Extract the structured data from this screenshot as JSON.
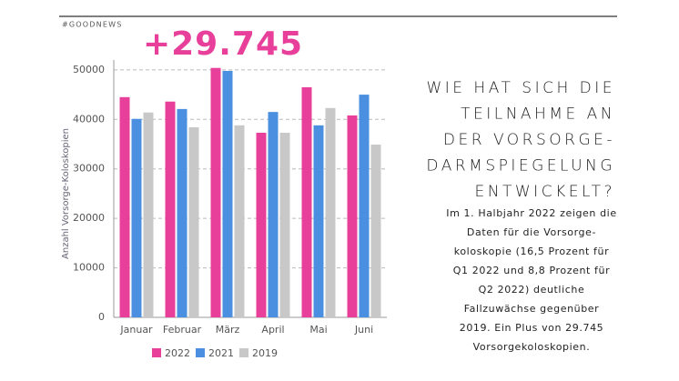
{
  "header": "#GOODNEWS",
  "chart_data": {
    "type": "bar",
    "annotation": "+29.745",
    "ylabel": "Anzahl Vorsorge-Koloskopien",
    "categories": [
      "Januar",
      "Februar",
      "März",
      "April",
      "Mai",
      "Juni"
    ],
    "series": [
      {
        "name": "2022",
        "color": "#e8409a",
        "values": [
          44500,
          43600,
          50400,
          37300,
          46500,
          40800
        ]
      },
      {
        "name": "2021",
        "color": "#4a8fe0",
        "values": [
          40100,
          42100,
          49800,
          41500,
          38800,
          45000
        ]
      },
      {
        "name": "2019",
        "color": "#c8c8c8",
        "values": [
          41400,
          38400,
          38800,
          37300,
          42300,
          34900
        ]
      }
    ],
    "ylim": [
      0,
      52000
    ],
    "yticks": [
      0,
      10000,
      20000,
      30000,
      40000,
      50000
    ],
    "grid": true
  },
  "heading": [
    "WIE HAT SICH DIE",
    "TEILNAHME AN",
    "DER VORSORGE-",
    "DARMSPIEGELUNG",
    "ENTWICKELT?"
  ],
  "paragraph": [
    "Im 1. Halbjahr 2022 zeigen die",
    "Daten für die Vorsorge-",
    "koloskopie (16,5 Prozent für",
    "Q1 2022 und 8,8 Prozent für",
    "Q2 2022) deutliche",
    "Fallzuwächse gegenüber",
    "2019. Ein Plus von 29.745",
    "Vorsorgekoloskopien."
  ]
}
